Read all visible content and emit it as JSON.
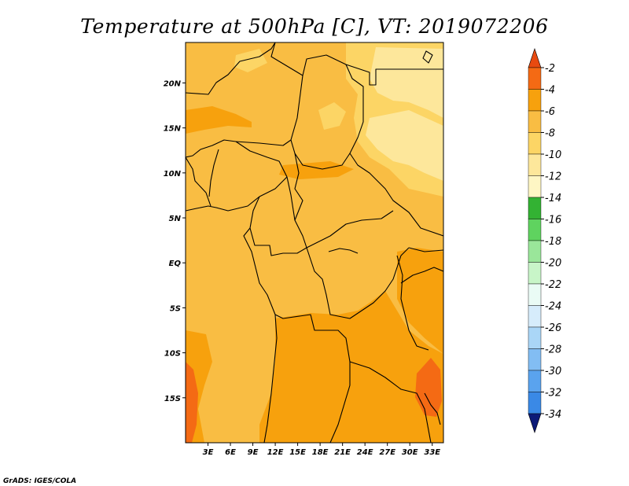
{
  "title": "Temperature at 500hPa [C], VT: 2019072206",
  "credit": "GrADS: IGES/COLA",
  "map": {
    "lon_range": [
      0,
      34.5
    ],
    "lat_range": [
      -20,
      24.5
    ],
    "x_ticks": [
      "3E",
      "6E",
      "9E",
      "12E",
      "15E",
      "18E",
      "21E",
      "24E",
      "27E",
      "30E",
      "33E"
    ],
    "x_tick_values": [
      3,
      6,
      9,
      12,
      15,
      18,
      21,
      24,
      27,
      30,
      33
    ],
    "y_ticks": [
      "20N",
      "15N",
      "10N",
      "5N",
      "EQ",
      "5S",
      "10S",
      "15S"
    ],
    "y_tick_values": [
      20,
      15,
      10,
      5,
      0,
      -5,
      -10,
      -15
    ],
    "field_colors": {
      "background": "#f9bd43",
      "band_-4_-2": "#f7a10d",
      "band_-2_0": "#f46a14",
      "band_-8_-6": "#fcd565",
      "band_-10_-8": "#fde79b"
    }
  },
  "colorbar": {
    "labels": [
      "-2",
      "-4",
      "-6",
      "-8",
      "-10",
      "-12",
      "-14",
      "-16",
      "-18",
      "-20",
      "-22",
      "-24",
      "-26",
      "-28",
      "-30",
      "-32",
      "-34"
    ],
    "colors": [
      "#e84a10",
      "#f46a14",
      "#f7a10d",
      "#f9bd43",
      "#fcd565",
      "#fde79b",
      "#fef6c4",
      "#33b233",
      "#5fd35f",
      "#9ae69a",
      "#c8f5c8",
      "#eafbf5",
      "#d6ecfb",
      "#aad6f7",
      "#82bdf3",
      "#5aa3ee",
      "#3a89e6",
      "#1e6ad8",
      "#1149c0",
      "#0a2f9e",
      "#0c1a78"
    ]
  }
}
